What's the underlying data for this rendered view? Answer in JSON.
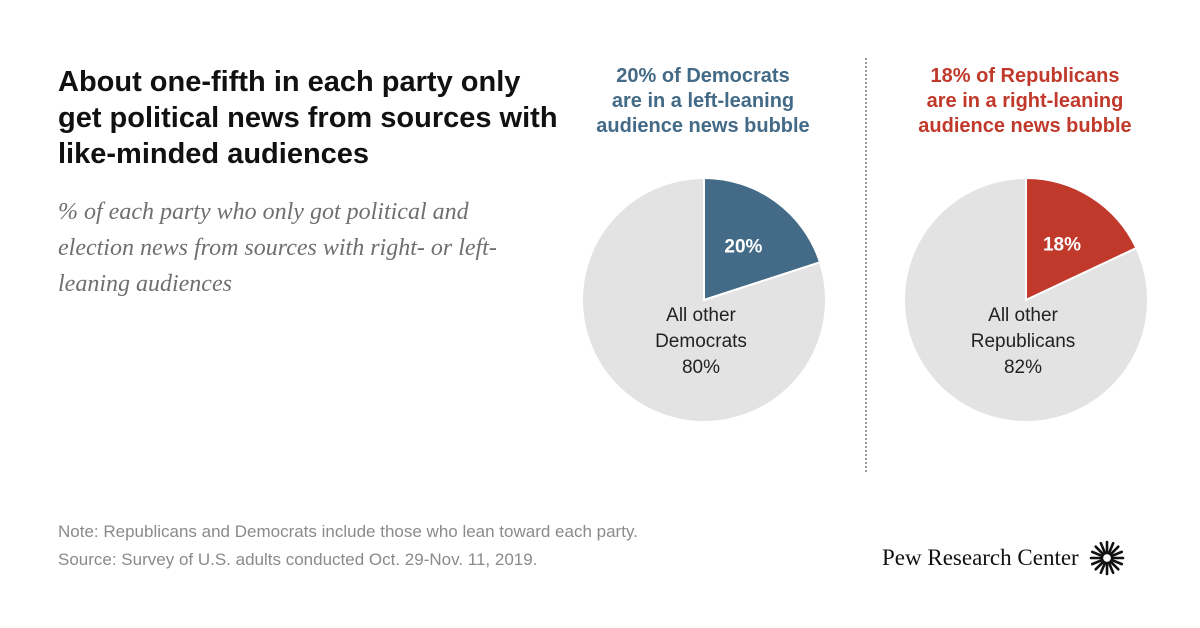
{
  "colors": {
    "democrat": "#436a86",
    "republican": "#c0392b",
    "other": "#e3e3e3",
    "text": "#111111"
  },
  "chart_data": {
    "title": "About one-fifth in each party only get political news from sources with like-minded audiences",
    "subtitle": "% of each party who only got political and election news from sources with right- or left-leaning audiences",
    "charts": [
      {
        "type": "pie",
        "heading": [
          "20% of Democrats",
          "are in a left-leaning",
          "audience news bubble"
        ],
        "slices": [
          {
            "label": "20%",
            "value": 20,
            "color": "#436a86"
          },
          {
            "label": [
              "All other",
              "Democrats",
              "80%"
            ],
            "value": 80,
            "color": "#e3e3e3"
          }
        ]
      },
      {
        "type": "pie",
        "heading": [
          "18% of Republicans",
          "are in a right-leaning",
          "audience news bubble"
        ],
        "slices": [
          {
            "label": "18%",
            "value": 18,
            "color": "#c0392b"
          },
          {
            "label": [
              "All other",
              "Republicans",
              "82%"
            ],
            "value": 82,
            "color": "#e3e3e3"
          }
        ]
      }
    ]
  },
  "notes": {
    "note": "Note: Republicans and Democrats include those who lean toward each party.",
    "source": "Source: Survey of U.S. adults conducted Oct. 29-Nov. 11, 2019."
  },
  "logo": {
    "text": "Pew Research Center",
    "icon": "sunburst-icon"
  }
}
